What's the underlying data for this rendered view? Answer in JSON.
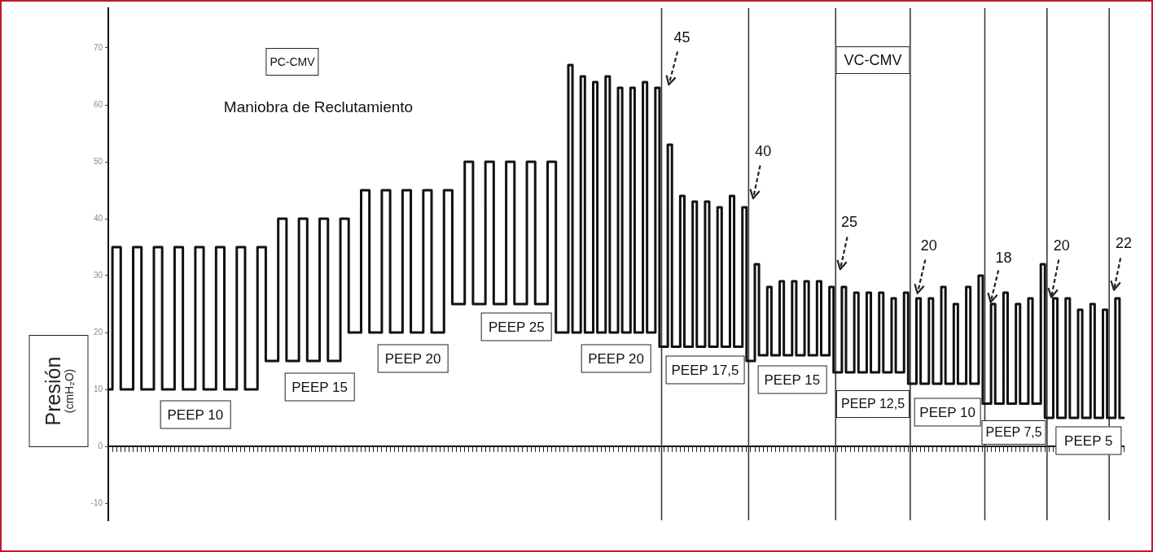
{
  "chart_data": {
    "type": "step",
    "ylabel": "Presión (cmH₂O)",
    "annotations": [
      "PC-CMV",
      "Maniobra de Reclutamiento",
      "VC-CMV",
      "PEEP 10",
      "PEEP 15",
      "PEEP 20",
      "PEEP 25",
      "PEEP 20",
      "PEEP 17,5",
      "PEEP 15",
      "PEEP 12,5",
      "PEEP 10",
      "PEEP 7,5",
      "PEEP 5",
      "45",
      "40",
      "25",
      "20",
      "18",
      "20",
      "22"
    ],
    "categories": [
      null,
      null,
      null,
      null,
      null,
      null,
      null,
      null,
      null,
      null,
      null,
      null,
      null,
      null,
      null,
      null,
      null,
      null,
      null,
      null,
      null,
      null,
      null,
      null,
      null,
      null,
      null,
      null,
      null,
      null,
      null,
      null,
      null,
      null,
      null,
      null,
      null,
      null,
      null,
      null,
      null,
      null,
      null,
      null,
      null,
      null,
      null,
      null,
      null,
      null,
      null,
      null,
      null,
      null,
      null,
      null,
      null,
      null,
      null,
      null,
      null,
      null,
      null,
      null,
      null,
      null,
      null,
      null,
      null,
      null,
      null,
      null,
      null,
      null,
      null,
      null,
      null,
      null,
      null,
      null,
      null,
      null,
      null,
      null,
      null,
      null,
      null,
      null,
      null,
      null,
      null,
      null,
      null,
      null,
      null,
      null,
      null,
      null,
      null,
      null,
      null,
      null,
      null,
      null,
      null,
      null,
      null,
      null,
      null,
      null,
      null,
      null,
      null,
      null,
      null,
      null,
      null,
      null,
      null,
      null,
      null,
      null,
      null,
      null,
      null,
      null,
      null,
      null,
      null,
      null,
      null,
      null,
      null,
      null,
      null,
      null,
      null,
      null,
      null,
      null,
      null,
      null,
      null,
      null,
      null,
      null,
      null,
      null,
      null,
      null,
      null,
      null,
      null,
      null,
      null,
      null,
      null,
      null,
      null,
      null,
      null,
      null,
      null,
      null,
      null,
      null,
      null,
      null,
      null,
      null,
      null,
      null,
      null,
      null,
      null,
      null,
      null,
      null,
      null,
      null,
      null,
      null,
      null,
      null,
      null,
      null,
      null,
      null,
      null,
      null,
      null,
      null,
      null,
      null,
      null,
      null,
      null,
      null,
      null,
      null,
      null,
      null,
      null,
      null,
      null,
      null,
      null,
      null,
      null,
      null,
      null,
      null,
      null,
      null,
      null,
      null,
      null,
      null,
      null,
      null,
      null,
      null,
      null,
      null,
      null,
      null,
      null,
      null,
      null,
      null,
      null,
      null,
      null,
      null,
      null,
      null,
      null,
      null,
      null,
      null,
      null,
      null,
      null,
      null,
      null,
      null
    ],
    "series": [
      {
        "color": "#111111",
        "values": [
          10,
          35,
          35,
          10,
          10,
          10,
          35,
          35,
          10,
          10,
          10,
          35,
          35,
          10,
          10,
          10,
          35,
          35,
          10,
          10,
          10,
          35,
          35,
          10,
          10,
          10,
          35,
          35,
          10,
          10,
          10,
          35,
          35,
          10,
          10,
          10,
          35,
          35,
          15,
          15,
          15,
          40,
          40,
          15,
          15,
          15,
          40,
          40,
          15,
          15,
          15,
          40,
          40,
          15,
          15,
          15,
          40,
          40,
          20,
          20,
          20,
          45,
          45,
          20,
          20,
          20,
          45,
          45,
          20,
          20,
          20,
          45,
          45,
          20,
          20,
          20,
          45,
          45,
          20,
          20,
          20,
          45,
          45,
          25,
          25,
          25,
          50,
          50,
          25,
          25,
          25,
          50,
          50,
          25,
          25,
          25,
          50,
          50,
          25,
          25,
          25,
          50,
          50,
          25,
          25,
          25,
          50,
          50,
          20,
          20,
          20,
          67,
          20,
          20,
          65,
          20,
          20,
          64,
          20,
          20,
          65,
          20,
          20,
          63,
          20,
          20,
          63,
          20,
          20,
          64,
          20,
          20,
          63,
          17.5,
          17.5,
          53,
          17.5,
          17.5,
          44,
          17.5,
          17.5,
          43,
          17.5,
          17.5,
          43,
          17.5,
          17.5,
          42,
          17.5,
          17.5,
          44,
          17.5,
          17.5,
          42,
          15,
          15,
          32,
          16,
          16,
          28,
          16,
          16,
          29,
          16,
          16,
          29,
          16,
          16,
          29,
          16,
          16,
          29,
          16,
          16,
          28,
          13,
          13,
          28,
          13,
          13,
          27,
          13,
          13,
          27,
          13,
          13,
          27,
          13,
          13,
          26,
          13,
          13,
          27,
          11,
          11,
          26,
          11,
          11,
          26,
          11,
          11,
          28,
          11,
          11,
          25,
          11,
          11,
          28,
          11,
          11,
          30,
          7.5,
          7.5,
          25,
          7.5,
          7.5,
          27,
          7.5,
          7.5,
          25,
          7.5,
          7.5,
          26,
          7.5,
          7.5,
          32,
          5,
          5,
          26,
          5,
          5,
          26,
          5,
          5,
          24,
          5,
          5,
          25,
          5,
          5,
          24,
          5,
          5,
          26,
          5,
          5
        ]
      }
    ],
    "ylim": [
      -13,
      77
    ],
    "yticks": [
      -10,
      0,
      10,
      20,
      30,
      40,
      50,
      60,
      70
    ],
    "grid": false,
    "tick_labels": "y",
    "marker": "none",
    "line_style": "solid"
  }
}
